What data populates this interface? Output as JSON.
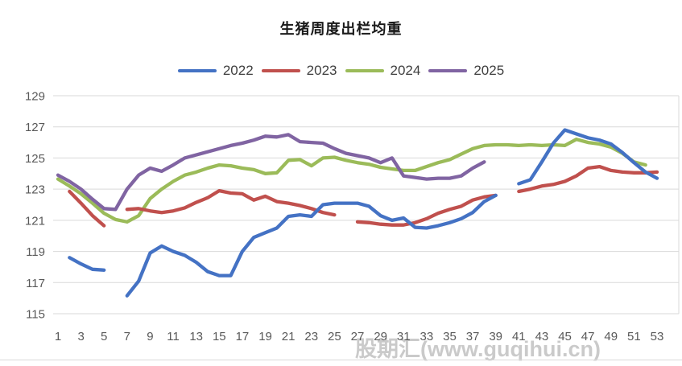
{
  "title": "生猪周度出栏均重",
  "watermark": "股期汇(www.guqihui.cn)",
  "axis": {
    "y_tick_labels": [
      "129",
      "127",
      "125",
      "123",
      "121",
      "119",
      "117",
      "115"
    ],
    "x_tick_labels": [
      "1",
      "3",
      "5",
      "7",
      "9",
      "11",
      "13",
      "15",
      "17",
      "19",
      "21",
      "23",
      "25",
      "27",
      "29",
      "31",
      "33",
      "35",
      "37",
      "39",
      "41",
      "43",
      "45",
      "47",
      "49",
      "51",
      "53"
    ]
  },
  "colors": {
    "grid": "#d9d9d9",
    "axis_text": "#595959",
    "s2022": "#4472c4",
    "s2023": "#c0504d",
    "s2024": "#9bbb59",
    "s2025": "#8064a2"
  },
  "chart_data": {
    "type": "line",
    "title": "生猪周度出栏均重",
    "xlabel": "",
    "ylabel": "",
    "x": [
      1,
      2,
      3,
      4,
      5,
      6,
      7,
      8,
      9,
      10,
      11,
      12,
      13,
      14,
      15,
      16,
      17,
      18,
      19,
      20,
      21,
      22,
      23,
      24,
      25,
      26,
      27,
      28,
      29,
      30,
      31,
      32,
      33,
      34,
      35,
      36,
      37,
      38,
      39,
      40,
      41,
      42,
      43,
      44,
      45,
      46,
      47,
      48,
      49,
      50,
      51,
      52,
      53
    ],
    "x_tick_step": 2,
    "ylim": [
      115,
      129
    ],
    "y_ticks": [
      115,
      117,
      119,
      121,
      123,
      125,
      127,
      129
    ],
    "grid": true,
    "legend_position": "top",
    "series": [
      {
        "name": "2022",
        "color": "#4472c4",
        "values": [
          null,
          118.6,
          118.2,
          117.85,
          117.8,
          null,
          116.15,
          117.1,
          118.9,
          119.35,
          119.0,
          118.75,
          118.3,
          117.7,
          117.45,
          117.45,
          119.0,
          119.9,
          120.2,
          120.5,
          121.25,
          121.35,
          121.25,
          122.0,
          122.1,
          122.1,
          122.1,
          121.9,
          121.3,
          121.0,
          121.15,
          120.55,
          120.5,
          120.65,
          120.85,
          121.1,
          121.5,
          122.2,
          122.6,
          null,
          123.35,
          123.6,
          124.75,
          125.95,
          126.8,
          126.55,
          126.3,
          126.15,
          125.9,
          125.35,
          124.7,
          124.1,
          123.7
        ]
      },
      {
        "name": "2023",
        "color": "#c0504d",
        "values": [
          null,
          122.85,
          122.1,
          121.3,
          120.65,
          null,
          121.7,
          121.75,
          121.6,
          121.5,
          121.6,
          121.8,
          122.15,
          122.45,
          122.9,
          122.75,
          122.7,
          122.3,
          122.55,
          122.2,
          122.1,
          121.95,
          121.75,
          121.5,
          121.35,
          null,
          120.9,
          120.85,
          120.75,
          120.7,
          120.7,
          120.85,
          121.1,
          121.45,
          121.7,
          121.9,
          122.3,
          122.5,
          122.6,
          null,
          122.85,
          123.0,
          123.2,
          123.3,
          123.5,
          123.85,
          124.35,
          124.45,
          124.2,
          124.1,
          124.05,
          124.05,
          124.1
        ]
      },
      {
        "name": "2024",
        "color": "#9bbb59",
        "values": [
          123.65,
          123.2,
          122.7,
          122.1,
          121.45,
          121.05,
          120.9,
          121.3,
          122.4,
          123.0,
          123.5,
          123.9,
          124.1,
          124.35,
          124.55,
          124.5,
          124.35,
          124.25,
          124.0,
          124.05,
          124.85,
          124.9,
          124.5,
          125.0,
          125.05,
          124.85,
          124.7,
          124.6,
          124.4,
          124.3,
          124.2,
          124.2,
          124.45,
          124.7,
          124.9,
          125.25,
          125.6,
          125.8,
          125.85,
          125.85,
          125.8,
          125.85,
          125.8,
          125.85,
          125.8,
          126.2,
          126.0,
          125.9,
          125.7,
          125.3,
          124.75,
          124.55,
          null
        ]
      },
      {
        "name": "2025",
        "color": "#8064a2",
        "values": [
          123.9,
          123.5,
          123.0,
          122.35,
          121.75,
          121.7,
          123.0,
          123.9,
          124.35,
          124.15,
          124.55,
          125.0,
          125.2,
          125.4,
          125.6,
          125.8,
          125.95,
          126.15,
          126.4,
          126.35,
          126.5,
          126.05,
          126.0,
          125.95,
          125.6,
          125.3,
          125.15,
          125.0,
          124.7,
          125.0,
          123.85,
          123.75,
          123.65,
          123.7,
          123.7,
          123.85,
          124.35,
          124.75,
          null,
          null,
          null,
          null,
          null,
          null,
          null,
          null,
          null,
          null,
          null,
          null,
          null,
          null,
          null
        ]
      }
    ]
  }
}
